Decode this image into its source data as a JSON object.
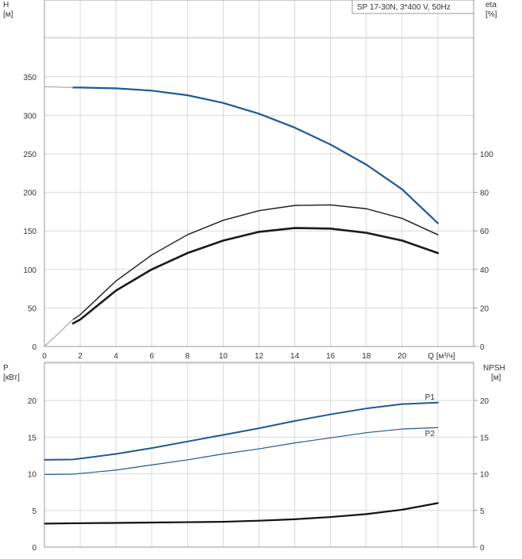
{
  "colors": {
    "head_curve": "#1f5a93",
    "power_curve": "#1f5a93",
    "eta_curve": "#1a1a1a",
    "npsh_curve": "#111111",
    "grid": "#d9d9d9",
    "frame": "#9a9a9a"
  },
  "chart_data": [
    {
      "type": "line",
      "title": "SP 17-30N, 3*400 V, 50Hz",
      "ylabel": "H",
      "yunit": "[м]",
      "y2label": "eta",
      "y2unit": "[%]",
      "xlabel": "Q [м³/ч]",
      "xlim": [
        0,
        24
      ],
      "ylim": [
        0,
        400
      ],
      "y2lim": [
        0,
        160
      ],
      "xticks": [
        "0",
        "2",
        "4",
        "6",
        "8",
        "10",
        "12",
        "14",
        "16",
        "18",
        "20"
      ],
      "yticks": [
        "0",
        "50",
        "100",
        "150",
        "200",
        "250",
        "300",
        "350"
      ],
      "y2ticks": [
        "0",
        "20",
        "40",
        "60",
        "80",
        "100"
      ],
      "grid": true,
      "series": [
        {
          "role": "head",
          "axis": "y",
          "color": "#1f5a93",
          "width": 2.2,
          "x": [
            1.6,
            2,
            4,
            6,
            8,
            10,
            12,
            14,
            16,
            18,
            20,
            22
          ],
          "y": [
            336,
            336,
            335,
            332,
            326,
            316,
            302,
            284,
            262,
            236,
            204,
            160
          ]
        },
        {
          "role": "head-extension",
          "axis": "y",
          "color": "#9a9a9a",
          "width": 1,
          "x": [
            0,
            1.6
          ],
          "y": [
            337,
            336
          ]
        },
        {
          "role": "eta",
          "axis": "y2",
          "color": "#1a1a1a",
          "width": 1.4,
          "x": [
            1.6,
            2,
            4,
            6,
            8,
            10,
            12,
            14,
            16,
            18,
            20,
            22
          ],
          "y": [
            14,
            16.5,
            34,
            47.5,
            58,
            65.5,
            70.5,
            73.2,
            73.5,
            71.5,
            66.5,
            58
          ]
        },
        {
          "role": "eta-2",
          "axis": "y2",
          "color": "#1a1a1a",
          "width": 2.6,
          "x": [
            1.6,
            2,
            4,
            6,
            8,
            10,
            12,
            14,
            16,
            18,
            20,
            22
          ],
          "y": [
            12,
            14,
            29,
            40,
            48.5,
            55,
            59.5,
            61.5,
            61.2,
            59,
            55,
            48.5
          ]
        },
        {
          "role": "eta-extension",
          "axis": "y2",
          "color": "#9a9a9a",
          "width": 1,
          "x": [
            0,
            1.6
          ],
          "y": [
            0,
            14
          ]
        }
      ]
    },
    {
      "type": "line",
      "ylabel": "P",
      "yunit": "[кВт]",
      "y2label": "NPSH",
      "y2unit": "[м]",
      "xlim": [
        0,
        24
      ],
      "ylim": [
        0,
        27
      ],
      "y2lim": [
        0,
        27
      ],
      "yticks": [
        "0",
        "5",
        "10",
        "15",
        "20"
      ],
      "y2ticks": [
        "0",
        "5",
        "10",
        "15",
        "20"
      ],
      "grid": true,
      "series": [
        {
          "name": "P1",
          "axis": "y",
          "color": "#1f5a93",
          "width": 2,
          "x": [
            0,
            1.6,
            4,
            6,
            8,
            10,
            12,
            14,
            16,
            18,
            20,
            22
          ],
          "y": [
            11.9,
            11.95,
            12.7,
            13.5,
            14.4,
            15.3,
            16.2,
            17.2,
            18.1,
            18.9,
            19.5,
            19.7
          ]
        },
        {
          "name": "P2",
          "axis": "y",
          "color": "#1f5a93",
          "width": 1.2,
          "x": [
            0,
            1.6,
            4,
            6,
            8,
            10,
            12,
            14,
            16,
            18,
            20,
            22
          ],
          "y": [
            9.9,
            9.95,
            10.5,
            11.2,
            11.9,
            12.7,
            13.4,
            14.2,
            14.9,
            15.6,
            16.1,
            16.3
          ]
        },
        {
          "role": "npsh",
          "axis": "y2",
          "color": "#111111",
          "width": 2.2,
          "x": [
            0,
            1.6,
            4,
            6,
            8,
            10,
            12,
            14,
            16,
            18,
            20,
            22
          ],
          "y": [
            3.2,
            3.25,
            3.3,
            3.35,
            3.4,
            3.45,
            3.6,
            3.8,
            4.1,
            4.5,
            5.1,
            6.0
          ]
        }
      ]
    }
  ]
}
